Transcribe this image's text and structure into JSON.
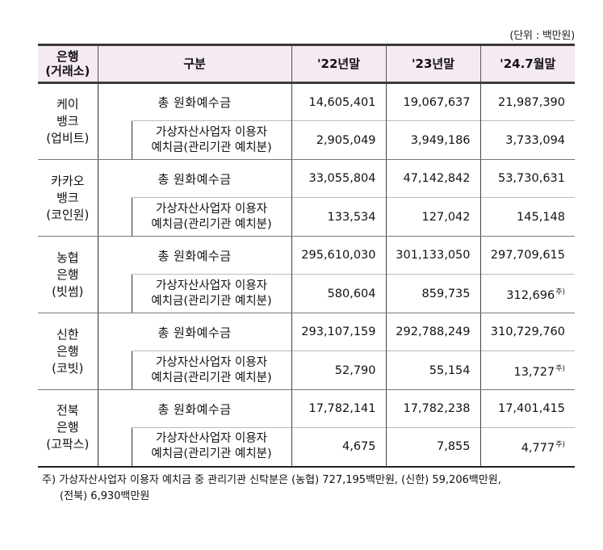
{
  "unit_label": "(단위 : 백만원)",
  "table": {
    "headers": {
      "bank": "은행\n(거래소)",
      "bank_line1": "은행",
      "bank_line2": "(거래소)",
      "category": "구분",
      "col1": "'22년말",
      "col2": "'23년말",
      "col3": "'24.7월말"
    },
    "category_total": "총 원화예수금",
    "category_sub_line1": "가상자산사업자 이용자",
    "category_sub_line2": "예치금(관리기관 예치분)",
    "banks": [
      {
        "line1": "케이",
        "line2": "뱅크",
        "line3": "(업비트)",
        "total": [
          "14,605,401",
          "19,067,637",
          "21,987,390"
        ],
        "sub": [
          "2,905,049",
          "3,949,186",
          "3,733,094"
        ],
        "sub_note": ""
      },
      {
        "line1": "카카오",
        "line2": "뱅크",
        "line3": "(코인원)",
        "total": [
          "33,055,804",
          "47,142,842",
          "53,730,631"
        ],
        "sub": [
          "133,534",
          "127,042",
          "145,148"
        ],
        "sub_note": ""
      },
      {
        "line1": "농협",
        "line2": "은행",
        "line3": "(빗썸)",
        "total": [
          "295,610,030",
          "301,133,050",
          "297,709,615"
        ],
        "sub": [
          "580,604",
          "859,735",
          "312,696"
        ],
        "sub_note": "주)"
      },
      {
        "line1": "신한",
        "line2": "은행",
        "line3": "(코빗)",
        "total": [
          "293,107,159",
          "292,788,249",
          "310,729,760"
        ],
        "sub": [
          "52,790",
          "55,154",
          "13,727"
        ],
        "sub_note": "주)"
      },
      {
        "line1": "전북",
        "line2": "은행",
        "line3": "(고팍스)",
        "total": [
          "17,782,141",
          "17,782,238",
          "17,401,415"
        ],
        "sub": [
          "4,675",
          "7,855",
          "4,777"
        ],
        "sub_note": "주)"
      }
    ]
  },
  "footnote": {
    "line1": "주) 가상자산사업자 이용자 예치금 중 관리기관 신탁분은 (농협) 727,195백만원, (신한) 59,206백만원,",
    "line2": "(전북) 6,930백만원"
  }
}
